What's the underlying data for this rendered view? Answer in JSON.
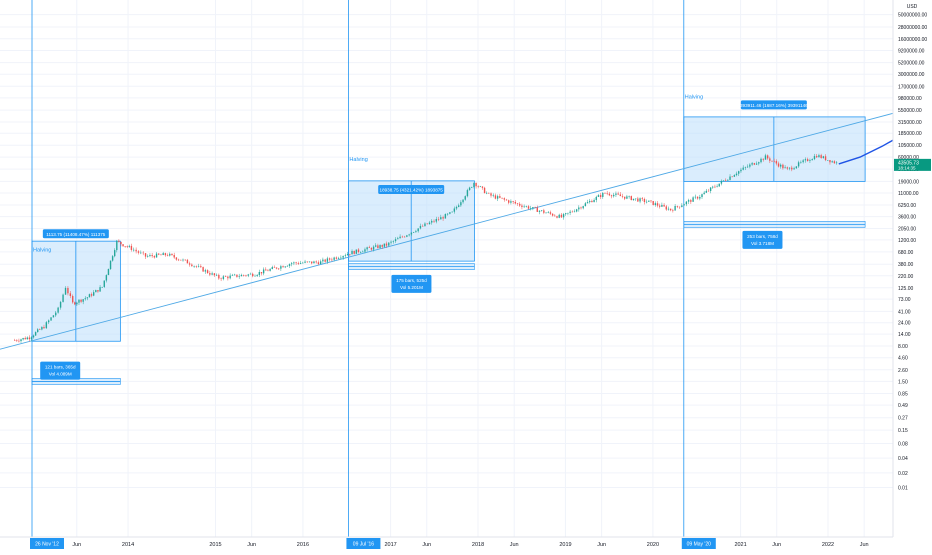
{
  "colors": {
    "background": "#ffffff",
    "grid": "#f0f3fa",
    "axis_text": "#131722",
    "halving_line": "#2196f3",
    "trendline": "#4fa9e6",
    "box_fill": "#bbdefb",
    "box_stroke": "#2196f3",
    "label_bg": "#2196f3",
    "label_text": "#ffffff",
    "candle_up": "#26a69a",
    "candle_down": "#ef5350",
    "projection": "#1e53e5",
    "current_price_bg": "#089981"
  },
  "axes": {
    "y_scale": "log",
    "y_ticks": [
      "50000000.00",
      "28000000.00",
      "16000000.00",
      "9200000.00",
      "5200000.00",
      "3000000.00",
      "1700000.00",
      "980000.00",
      "550000.00",
      "315000.00",
      "185000.00",
      "105000.00",
      "60000.00",
      "34000.00",
      "19000.00",
      "11000.00",
      "6250.00",
      "3600.00",
      "2050.00",
      "1200.00",
      "680.00",
      "380.00",
      "220.00",
      "125.00",
      "73.00",
      "41.00",
      "24.00",
      "14.00",
      "8.00",
      "4.60",
      "2.60",
      "1.50",
      "0.85",
      "0.49",
      "0.27",
      "0.15",
      "0.08",
      "0.04",
      "0.02",
      "0.01"
    ],
    "y_top_label": "USD",
    "x_ticks": [
      "Jun",
      "2014",
      "2015",
      "Jun",
      "2016",
      "2017",
      "Jun",
      "2018",
      "Jun",
      "2019",
      "Jun",
      "2020",
      "2021",
      "Jun",
      "2022",
      "Jun"
    ],
    "current_price": "43505.73",
    "current_price_sub": "18:14:35"
  },
  "chart_data": {
    "type": "line",
    "y_scale": "log",
    "x_range": [
      "2012-09",
      "2023-10"
    ],
    "y_range": [
      0.01,
      50000000
    ],
    "halvings": [
      {
        "date_label": "26 Nov '12",
        "label": "Halving"
      },
      {
        "date_label": "09 Jul '16",
        "label": "Halving"
      },
      {
        "date_label": "09 May '20",
        "label": "Halving"
      }
    ],
    "measure_boxes": [
      {
        "top_text": "1113.75 (11408.47%) 111375",
        "bottom_line1": "121 bars, 365d",
        "bottom_line2": "Vol 4.089M"
      },
      {
        "top_text": "18938.75 (4321.42%) 1893875",
        "bottom_line1": "175 bars, 525d",
        "bottom_line2": "Vol 5.201M"
      },
      {
        "top_text": "393911.46 (1687.16%) 39391146",
        "bottom_line1": "253 bars, 758d",
        "bottom_line2": "Vol 3.718M"
      }
    ],
    "price_series": [
      {
        "date": "2012-09",
        "close": 10.5
      },
      {
        "date": "2012-11",
        "close": 12
      },
      {
        "date": "2013-01",
        "close": 20
      },
      {
        "date": "2013-03",
        "close": 45
      },
      {
        "date": "2013-04",
        "close": 130
      },
      {
        "date": "2013-05",
        "close": 60
      },
      {
        "date": "2013-07",
        "close": 80
      },
      {
        "date": "2013-09",
        "close": 130
      },
      {
        "date": "2013-11",
        "close": 1100
      },
      {
        "date": "2014-01",
        "close": 800
      },
      {
        "date": "2014-03",
        "close": 550
      },
      {
        "date": "2014-06",
        "close": 600
      },
      {
        "date": "2014-09",
        "close": 400
      },
      {
        "date": "2015-01",
        "close": 200
      },
      {
        "date": "2015-06",
        "close": 240
      },
      {
        "date": "2015-11",
        "close": 400
      },
      {
        "date": "2016-03",
        "close": 420
      },
      {
        "date": "2016-07",
        "close": 650
      },
      {
        "date": "2016-12",
        "close": 950
      },
      {
        "date": "2017-05",
        "close": 2300
      },
      {
        "date": "2017-09",
        "close": 4300
      },
      {
        "date": "2017-12",
        "close": 18000
      },
      {
        "date": "2018-02",
        "close": 10000
      },
      {
        "date": "2018-06",
        "close": 6500
      },
      {
        "date": "2018-12",
        "close": 3500
      },
      {
        "date": "2019-06",
        "close": 11000
      },
      {
        "date": "2019-12",
        "close": 7200
      },
      {
        "date": "2020-03",
        "close": 5000
      },
      {
        "date": "2020-07",
        "close": 9500
      },
      {
        "date": "2020-12",
        "close": 29000
      },
      {
        "date": "2021-04",
        "close": 60000
      },
      {
        "date": "2021-07",
        "close": 33000
      },
      {
        "date": "2021-11",
        "close": 65000
      },
      {
        "date": "2022-02",
        "close": 43505.73
      }
    ],
    "projection_series": [
      {
        "date": "2022-02",
        "close": 43505.73
      },
      {
        "date": "2022-05",
        "close": 60000
      },
      {
        "date": "2022-08",
        "close": 100000
      },
      {
        "date": "2022-11",
        "close": 180000
      },
      {
        "date": "2023-02",
        "close": 260000
      },
      {
        "date": "2023-05",
        "close": 330000
      },
      {
        "date": "2023-07",
        "close": 400000
      }
    ],
    "trendline": [
      {
        "date": "2012-11",
        "close": 10
      },
      {
        "date": "2023-10",
        "close": 520000
      }
    ]
  }
}
